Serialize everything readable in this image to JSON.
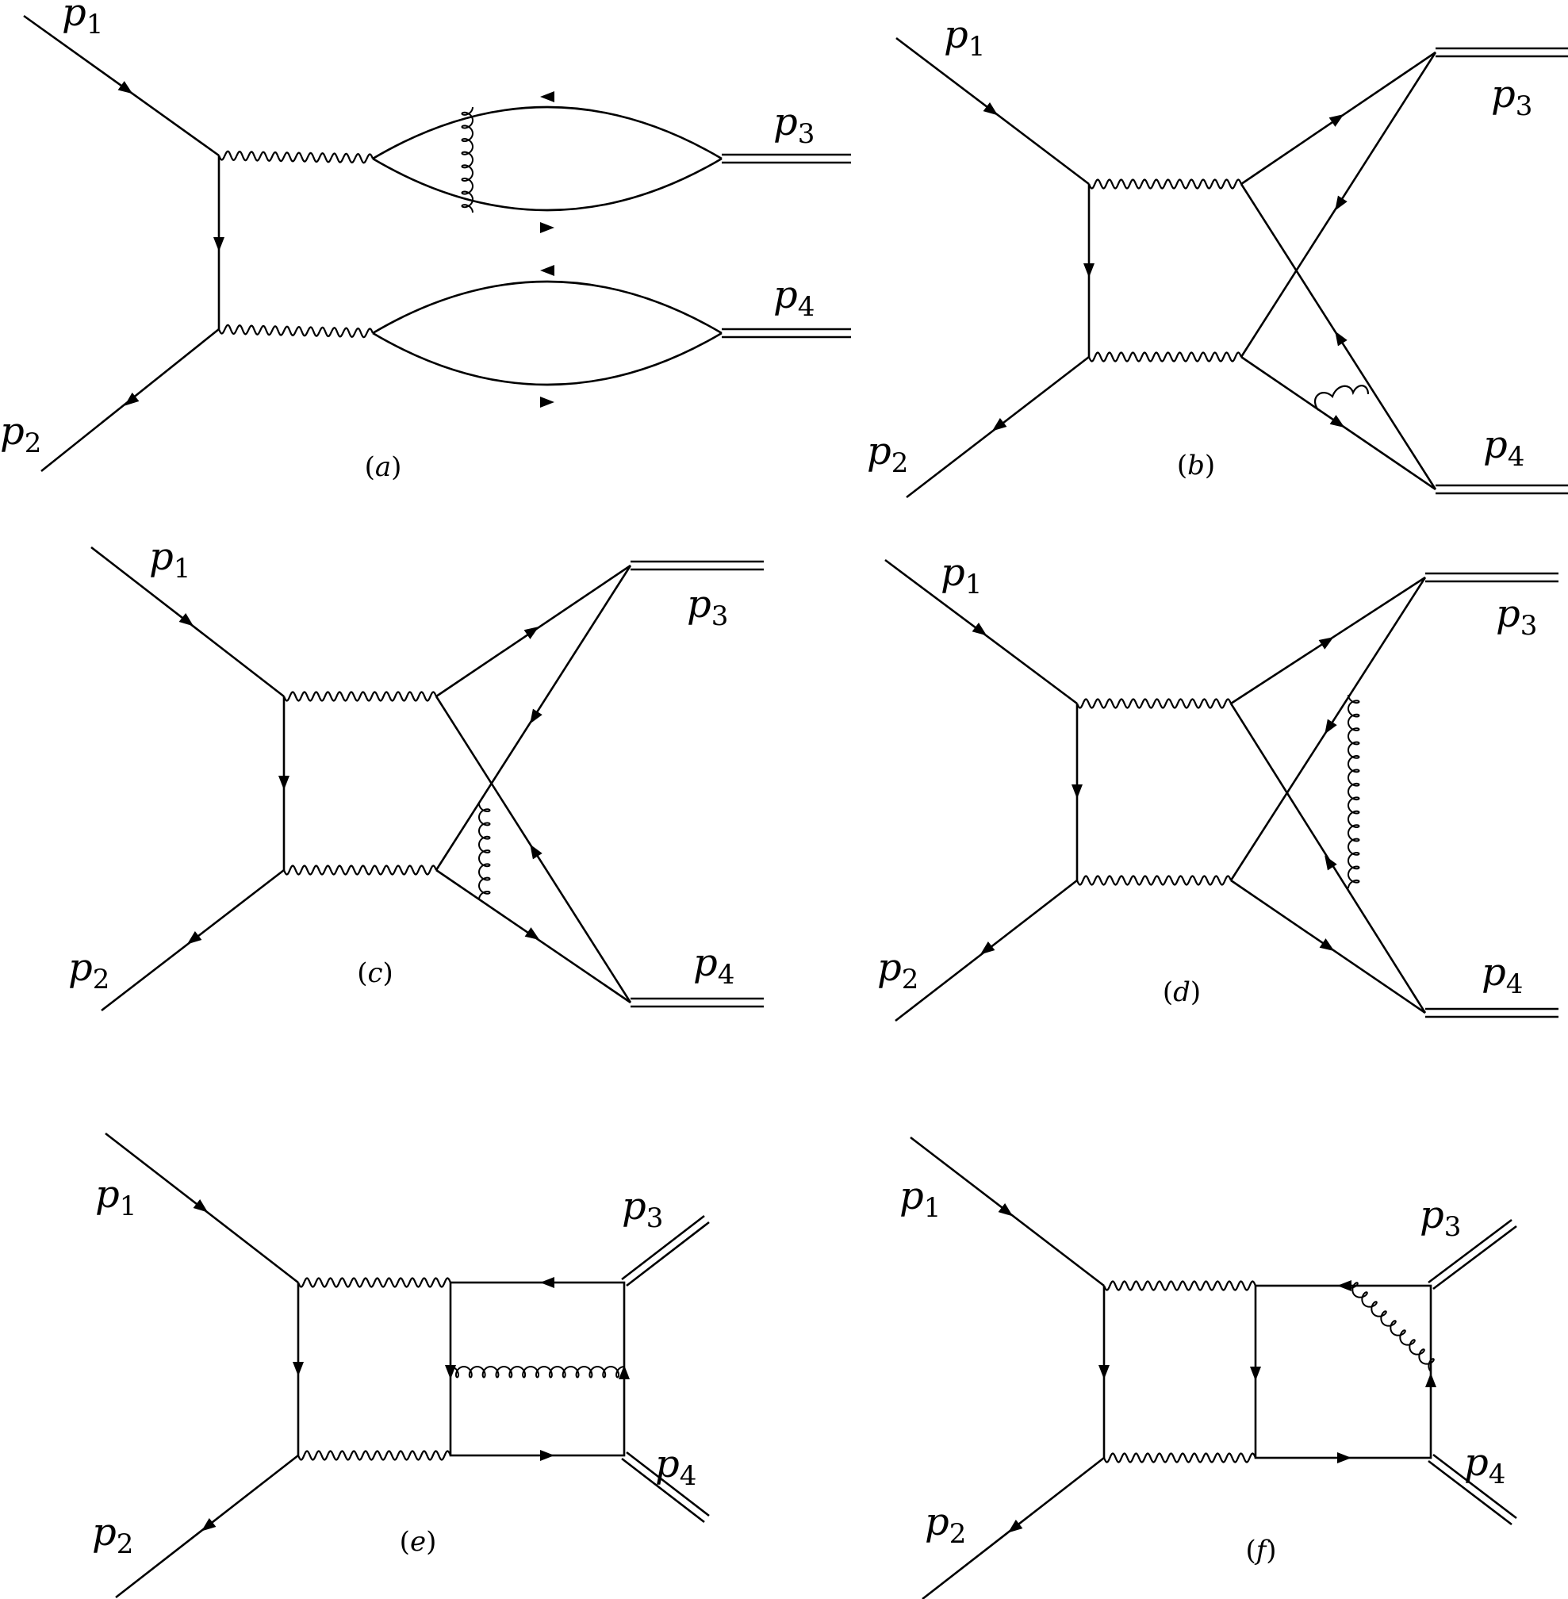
{
  "figure": {
    "stroke_color": "#000000",
    "background": "#ffffff",
    "panels": [
      {
        "id": "a",
        "caption_letter": "a",
        "labels": {
          "p1": [
            "p",
            "1"
          ],
          "p2": [
            "p",
            "2"
          ],
          "p3": [
            "p",
            "3"
          ],
          "p4": [
            "p",
            "4"
          ]
        },
        "topology": "two photon-to-meson loops with gluon in upper loop"
      },
      {
        "id": "b",
        "caption_letter": "b",
        "labels": {
          "p1": [
            "p",
            "1"
          ],
          "p2": [
            "p",
            "2"
          ],
          "p3": [
            "p",
            "3"
          ],
          "p4": [
            "p",
            "4"
          ]
        },
        "topology": "crossed quark lines with gluon near lower vertex"
      },
      {
        "id": "c",
        "caption_letter": "c",
        "labels": {
          "p1": [
            "p",
            "1"
          ],
          "p2": [
            "p",
            "2"
          ],
          "p3": [
            "p",
            "3"
          ],
          "p4": [
            "p",
            "4"
          ]
        },
        "topology": "crossed quark lines with gluon at left vertex"
      },
      {
        "id": "d",
        "caption_letter": "d",
        "labels": {
          "p1": [
            "p",
            "1"
          ],
          "p2": [
            "p",
            "2"
          ],
          "p3": [
            "p",
            "3"
          ],
          "p4": [
            "p",
            "4"
          ]
        },
        "topology": "crossed quark lines with vertical gluon"
      },
      {
        "id": "e",
        "caption_letter": "e",
        "labels": {
          "p1": [
            "p",
            "1"
          ],
          "p2": [
            "p",
            "2"
          ],
          "p3": [
            "p",
            "3"
          ],
          "p4": [
            "p",
            "4"
          ]
        },
        "topology": "quark box with horizontal gluon"
      },
      {
        "id": "f",
        "caption_letter": "f",
        "labels": {
          "p1": [
            "p",
            "1"
          ],
          "p2": [
            "p",
            "2"
          ],
          "p3": [
            "p",
            "3"
          ],
          "p4": [
            "p",
            "4"
          ]
        },
        "topology": "quark box with diagonal gluon"
      }
    ]
  }
}
